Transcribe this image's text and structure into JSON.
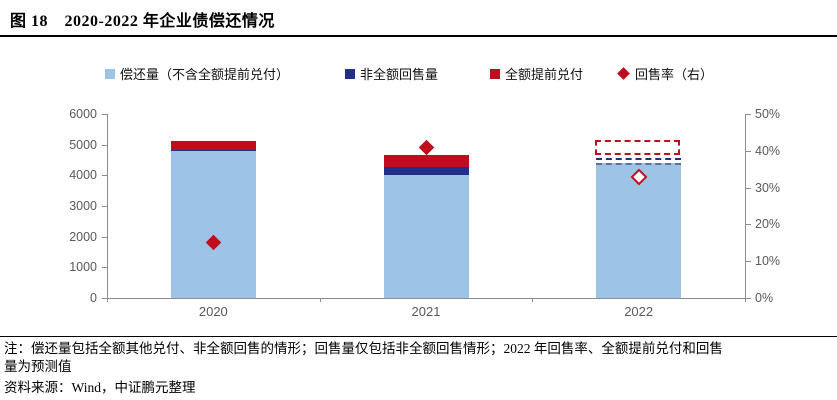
{
  "figure": {
    "title": "图 18　2020-2022 年企业债偿还情况",
    "note_lines": [
      "注：偿还量包括全额其他兑付、非全额回售的情形；回售量仅包括非全额回售情形；2022 年回售率、全额提前兑付和回售",
      "量为预测值"
    ],
    "source": "资料来源：Wind，中证鹏元整理"
  },
  "colors": {
    "light_blue": "#9DC3E6",
    "navy": "#222E88",
    "red": "#C00D1E",
    "forecast_blue_dash": "#607090",
    "axis_line": "#8c8c8c",
    "label_gray": "#595959"
  },
  "legend": [
    {
      "label": "偿还量（不含全额提前兑付）",
      "marker": "square",
      "color": "#9DC3E6"
    },
    {
      "label": "非全额回售量",
      "marker": "square",
      "color": "#222E88"
    },
    {
      "label": "全额提前兑付",
      "marker": "square",
      "color": "#C00D1E"
    },
    {
      "label": "回售率（右）",
      "marker": "diamond",
      "color": "#C00D1E"
    }
  ],
  "chart_data": {
    "type": "bar",
    "subtype": "stacked-with-line-markers",
    "title": "2020-2022 年企业债偿还情况",
    "categories": [
      "2020",
      "2021",
      "2022"
    ],
    "series": [
      {
        "name": "偿还量（不含全额提前兑付）",
        "values": [
          4780,
          4020,
          4400
        ],
        "color": "#9DC3E6"
      },
      {
        "name": "非全额回售量",
        "values": [
          50,
          250,
          150
        ],
        "color": "#222E88"
      },
      {
        "name": "全额提前兑付",
        "values": [
          280,
          380,
          600
        ],
        "color": "#C00D1E"
      }
    ],
    "rate_series": {
      "name": "回售率（右）",
      "values_pct": [
        15,
        41,
        33
      ],
      "axis": "right",
      "markers": [
        "solid",
        "solid",
        "hollow"
      ],
      "color": "#C00D1E"
    },
    "bar_styles": [
      "solid",
      "solid",
      "forecast-dashed"
    ],
    "forecast_category": "2022",
    "left_axis": {
      "ticks": [
        0,
        1000,
        2000,
        3000,
        4000,
        5000,
        6000
      ],
      "min": 0,
      "max": 6000
    },
    "right_axis": {
      "ticks_pct": [
        0,
        10,
        20,
        30,
        40,
        50
      ],
      "min_pct": 0,
      "max_pct": 50
    },
    "grid": false,
    "legend_position": "top"
  }
}
